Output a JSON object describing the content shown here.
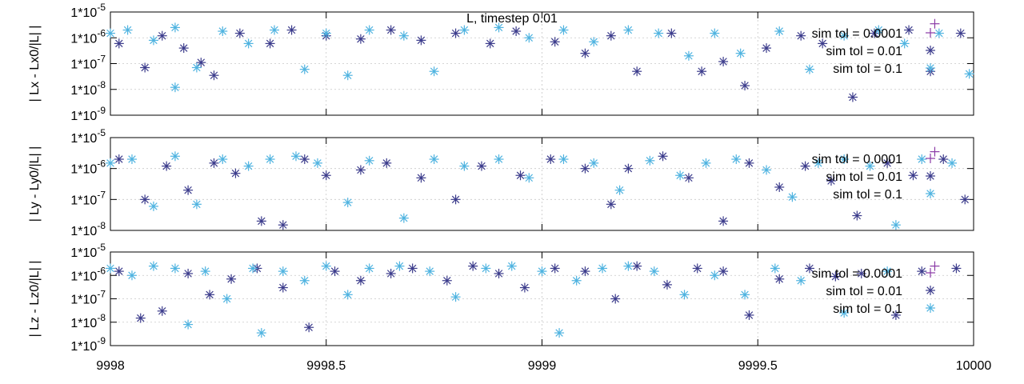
{
  "chart_data": [
    {
      "type": "scatter",
      "title": "L, timestep 0.01",
      "ylabel": "| Lx - Lx0/|L| |",
      "xlim": [
        9998,
        10000
      ],
      "ylim_log10": [
        -9,
        -5
      ],
      "yscale": "log",
      "y_tick_labels": [
        "1*10-9",
        "1*10-8",
        "1*10-7",
        "1*10-6",
        "1*10-5"
      ],
      "x_tick_labels": [],
      "grid": true,
      "legend_position": "top-right",
      "series": [
        {
          "name": "sim tol = 0.0001",
          "color": "#8a3aa6",
          "marker": "plus",
          "x": [
            9999.91
          ],
          "y": [
            3.5e-06
          ]
        },
        {
          "name": "sim tol = 0.01",
          "color": "#3c3c8c",
          "marker": "star",
          "x": [
            9998.02,
            9998.08,
            9998.12,
            9998.17,
            9998.21,
            9998.24,
            9998.3,
            9998.37,
            9998.42,
            9998.5,
            9998.58,
            9998.65,
            9998.72,
            9998.8,
            9998.88,
            9998.94,
            9999.03,
            9999.1,
            9999.16,
            9999.22,
            9999.3,
            9999.37,
            9999.42,
            9999.47,
            9999.52,
            9999.6,
            9999.65,
            9999.72,
            9999.77,
            9999.85,
            9999.9,
            9999.97
          ],
          "y": [
            6e-07,
            7e-08,
            1.2e-06,
            4e-07,
            1.1e-07,
            3.5e-08,
            1.5e-06,
            6e-07,
            2e-06,
            1.2e-06,
            9e-07,
            2e-06,
            8e-07,
            1.5e-06,
            6e-07,
            1.8e-06,
            7e-07,
            2.5e-07,
            1.2e-06,
            5e-08,
            1.5e-06,
            5e-08,
            1.2e-07,
            1.4e-08,
            4e-07,
            1.2e-06,
            6e-07,
            5e-09,
            1.5e-06,
            2e-06,
            5e-08,
            1.5e-06
          ]
        },
        {
          "name": "sim tol = 0.1",
          "color": "#4fb3e0",
          "marker": "star",
          "x": [
            9998.0,
            9998.04,
            9998.1,
            9998.15,
            9998.15,
            9998.2,
            9998.26,
            9998.32,
            9998.38,
            9998.45,
            9998.5,
            9998.55,
            9998.6,
            9998.68,
            9998.75,
            9998.82,
            9998.9,
            9998.97,
            9999.05,
            9999.12,
            9999.2,
            9999.27,
            9999.34,
            9999.4,
            9999.46,
            9999.55,
            9999.62,
            9999.7,
            9999.78,
            9999.84,
            9999.92,
            9999.99
          ],
          "y": [
            1.5e-06,
            2e-06,
            8e-07,
            2.5e-06,
            1.2e-08,
            7e-08,
            1.8e-06,
            6e-07,
            2e-06,
            6e-08,
            1.5e-06,
            3.5e-08,
            2e-06,
            1.2e-06,
            5e-08,
            2e-06,
            2.5e-06,
            1e-06,
            2e-06,
            7e-07,
            2e-06,
            1.5e-06,
            2e-07,
            1.5e-06,
            2.5e-07,
            1.8e-06,
            6e-08,
            1.2e-06,
            2e-06,
            6e-07,
            1.5e-06,
            4e-08
          ]
        }
      ]
    },
    {
      "type": "scatter",
      "title": "",
      "ylabel": "| Ly - Ly0/|L| |",
      "xlim": [
        9998,
        10000
      ],
      "ylim_log10": [
        -8,
        -5
      ],
      "yscale": "log",
      "y_tick_labels": [
        "1*10-8",
        "1*10-7",
        "1*10-6",
        "1*10-5"
      ],
      "x_tick_labels": [],
      "grid": true,
      "legend_position": "top-right",
      "series": [
        {
          "name": "sim tol = 0.0001",
          "color": "#8a3aa6",
          "marker": "plus",
          "x": [
            9999.91
          ],
          "y": [
            3.5e-06
          ]
        },
        {
          "name": "sim tol = 0.01",
          "color": "#3c3c8c",
          "marker": "star",
          "x": [
            9998.02,
            9998.08,
            9998.13,
            9998.18,
            9998.24,
            9998.29,
            9998.35,
            9998.4,
            9998.45,
            9998.5,
            9998.58,
            9998.64,
            9998.72,
            9998.8,
            9998.86,
            9998.95,
            9999.02,
            9999.1,
            9999.16,
            9999.2,
            9999.28,
            9999.34,
            9999.42,
            9999.48,
            9999.55,
            9999.61,
            9999.67,
            9999.73,
            9999.8,
            9999.86,
            9999.93,
            9999.98
          ],
          "y": [
            2e-06,
            1e-07,
            1.2e-06,
            2e-07,
            1.5e-06,
            7e-07,
            2e-08,
            1.5e-08,
            2e-06,
            6e-07,
            9e-07,
            1.5e-06,
            5e-07,
            1e-07,
            1.2e-06,
            6e-07,
            2e-06,
            1e-06,
            7e-08,
            1e-06,
            2.5e-06,
            5e-07,
            2e-08,
            1.5e-06,
            2.5e-07,
            1.2e-06,
            4e-07,
            3e-08,
            1.5e-06,
            6e-07,
            2e-06,
            1e-07
          ]
        },
        {
          "name": "sim tol = 0.1",
          "color": "#4fb3e0",
          "marker": "star",
          "x": [
            9998.0,
            9998.05,
            9998.1,
            9998.15,
            9998.2,
            9998.26,
            9998.32,
            9998.37,
            9998.43,
            9998.48,
            9998.55,
            9998.6,
            9998.68,
            9998.75,
            9998.82,
            9998.9,
            9998.97,
            9999.05,
            9999.12,
            9999.18,
            9999.25,
            9999.32,
            9999.38,
            9999.45,
            9999.52,
            9999.58,
            9999.64,
            9999.7,
            9999.76,
            9999.82,
            9999.88,
            9999.95
          ],
          "y": [
            1.5e-06,
            2e-06,
            6e-08,
            2.5e-06,
            7e-08,
            2e-06,
            1.2e-06,
            2e-06,
            2.5e-06,
            1.5e-06,
            8e-08,
            1.8e-06,
            2.5e-08,
            2e-06,
            1.2e-06,
            2e-06,
            5e-07,
            2e-06,
            1.5e-06,
            2e-07,
            1.8e-06,
            6e-07,
            1.5e-06,
            2e-06,
            9e-07,
            1.2e-07,
            1.5e-06,
            2e-06,
            1.2e-06,
            1.5e-08,
            2e-06,
            1.5e-06
          ]
        }
      ]
    },
    {
      "type": "scatter",
      "title": "",
      "ylabel": "| Lz - Lz0/|L| |",
      "xlim": [
        9998,
        10000
      ],
      "ylim_log10": [
        -9,
        -5
      ],
      "yscale": "log",
      "y_tick_labels": [
        "1*10-9",
        "1*10-8",
        "1*10-7",
        "1*10-6",
        "1*10-5"
      ],
      "x_tick_labels": [
        "9998",
        "9998.5",
        "9999",
        "9999.5",
        "10000"
      ],
      "x_ticks": [
        9998,
        9998.5,
        9999,
        9999.5,
        10000
      ],
      "grid": true,
      "legend_position": "top-right",
      "series": [
        {
          "name": "sim tol = 0.0001",
          "color": "#8a3aa6",
          "marker": "plus",
          "x": [
            9999.91
          ],
          "y": [
            2.5e-06
          ]
        },
        {
          "name": "sim tol = 0.01",
          "color": "#3c3c8c",
          "marker": "star",
          "x": [
            9998.02,
            9998.07,
            9998.12,
            9998.18,
            9998.23,
            9998.28,
            9998.34,
            9998.4,
            9998.46,
            9998.52,
            9998.58,
            9998.65,
            9998.7,
            9998.78,
            9998.84,
            9998.9,
            9998.96,
            9999.03,
            9999.1,
            9999.17,
            9999.22,
            9999.29,
            9999.36,
            9999.42,
            9999.48,
            9999.55,
            9999.62,
            9999.68,
            9999.74,
            9999.82,
            9999.88,
            9999.96
          ],
          "y": [
            1.5e-06,
            1.5e-08,
            3e-08,
            1.2e-06,
            1.5e-07,
            7e-07,
            2e-06,
            3e-07,
            6e-09,
            1.5e-06,
            6e-07,
            1.2e-06,
            2e-06,
            6e-07,
            2.5e-06,
            1.2e-06,
            3e-07,
            2e-06,
            1.5e-06,
            1e-07,
            2.5e-06,
            4e-07,
            2e-06,
            1.5e-06,
            2e-08,
            7e-07,
            2e-06,
            9e-07,
            1.2e-06,
            2e-08,
            1.5e-06,
            2e-06
          ]
        },
        {
          "name": "sim tol = 0.1",
          "color": "#4fb3e0",
          "marker": "star",
          "x": [
            9998.0,
            9998.05,
            9998.1,
            9998.15,
            9998.18,
            9998.22,
            9998.27,
            9998.33,
            9998.35,
            9998.4,
            9998.45,
            9998.5,
            9998.55,
            9998.6,
            9998.67,
            9998.74,
            9998.8,
            9998.87,
            9998.93,
            9999.0,
            9999.04,
            9999.08,
            9999.14,
            9999.2,
            9999.26,
            9999.33,
            9999.4,
            9999.47,
            9999.54,
            9999.6,
            9999.7,
            9999.8
          ],
          "y": [
            2e-06,
            1e-06,
            2.5e-06,
            2e-06,
            8e-09,
            1.5e-06,
            1e-07,
            2e-06,
            3.5e-09,
            1.5e-06,
            6e-07,
            2.5e-06,
            1.5e-07,
            2e-06,
            2.5e-06,
            1.5e-06,
            1.2e-07,
            2e-06,
            2.5e-06,
            1.5e-06,
            3.5e-09,
            6e-07,
            2e-06,
            2.5e-06,
            1.5e-06,
            1.5e-07,
            1e-06,
            1.5e-07,
            2e-06,
            6e-07,
            2.5e-08,
            1.5e-06
          ]
        }
      ]
    }
  ]
}
